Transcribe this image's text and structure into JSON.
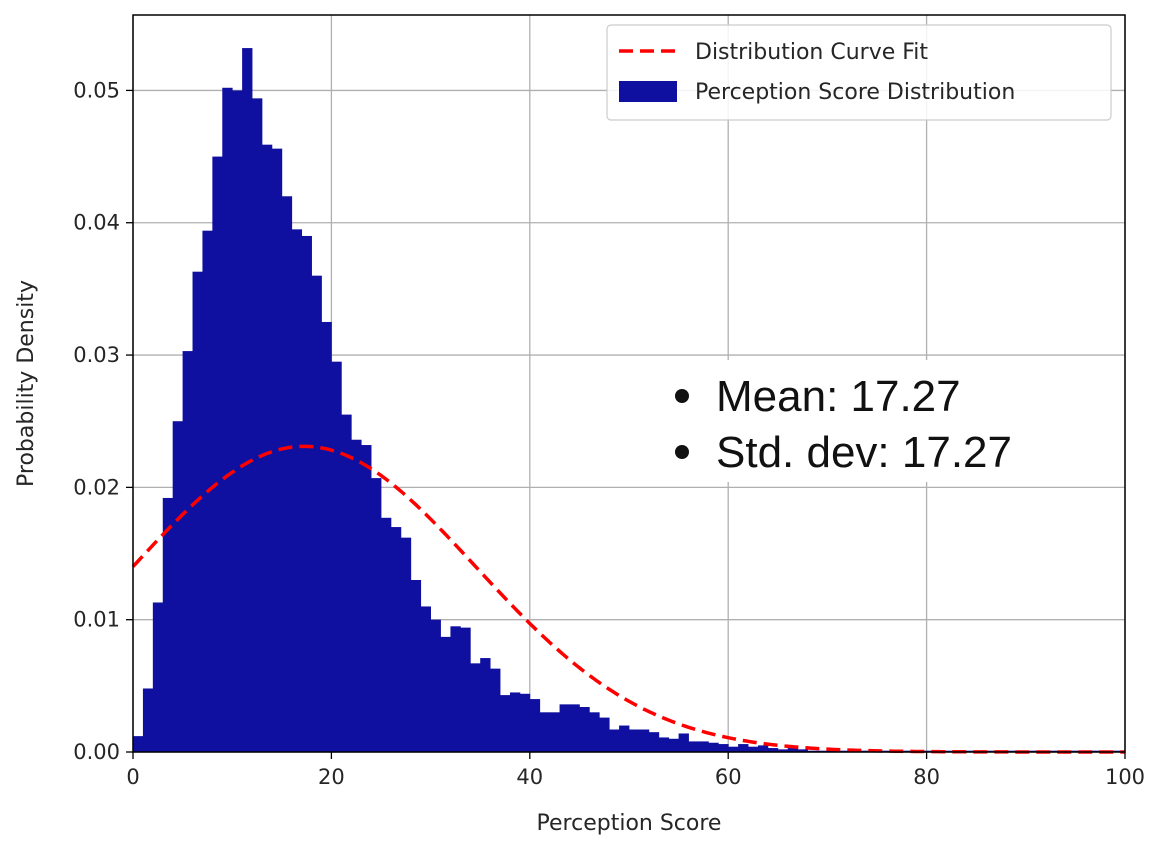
{
  "chart_data": {
    "type": "bar",
    "title": "",
    "xlabel": "Perception Score",
    "ylabel": "Probability Density",
    "xlim": [
      0,
      100
    ],
    "ylim": [
      0,
      0.0557
    ],
    "xticks": [
      0,
      20,
      40,
      60,
      80,
      100
    ],
    "xtick_labels": [
      "0",
      "20",
      "40",
      "60",
      "80",
      "100"
    ],
    "yticks": [
      0.0,
      0.01,
      0.02,
      0.03,
      0.04,
      0.05
    ],
    "ytick_labels": [
      "0.00",
      "0.01",
      "0.02",
      "0.03",
      "0.04",
      "0.05"
    ],
    "grid": true,
    "legend_position": "top-right",
    "colors": {
      "bars": "#1010a0",
      "curve": "#ff0000"
    },
    "series": [
      {
        "name": "Perception Score Distribution",
        "kind": "histogram",
        "bin_start": 0,
        "bin_width": 1,
        "values": [
          0.0012,
          0.0048,
          0.0113,
          0.0192,
          0.025,
          0.0303,
          0.0363,
          0.0394,
          0.045,
          0.0502,
          0.05,
          0.0532,
          0.0494,
          0.0459,
          0.0456,
          0.042,
          0.0395,
          0.039,
          0.036,
          0.0325,
          0.0295,
          0.0255,
          0.0236,
          0.0232,
          0.0207,
          0.0177,
          0.017,
          0.0162,
          0.013,
          0.011,
          0.01,
          0.0087,
          0.0095,
          0.0094,
          0.0067,
          0.0071,
          0.0063,
          0.0043,
          0.0045,
          0.0044,
          0.004,
          0.003,
          0.003,
          0.0036,
          0.0036,
          0.0034,
          0.003,
          0.0026,
          0.0017,
          0.002,
          0.0017,
          0.0017,
          0.0015,
          0.0011,
          0.001,
          0.0014,
          0.0008,
          0.0008,
          0.0007,
          0.0006,
          0.0004,
          0.0006,
          0.0004,
          0.0005,
          0.0003,
          0.0002,
          0.0003,
          0.0002,
          0.0001,
          0.0001,
          0.0001,
          0.0001,
          0.0001,
          0.0001,
          0.0001,
          0.0001,
          0.0001,
          0.0001,
          0.0001,
          0.0001,
          0.0001,
          0.0001,
          0.0001,
          0.0001,
          0.0001,
          0.0001,
          0.0001,
          0.0001,
          0.0001,
          0.0001,
          0.0001,
          0.0001,
          0.0001,
          0.0001,
          0.0001,
          0.0001,
          0.0001,
          0.0001,
          0.0001,
          0.0001
        ]
      },
      {
        "name": "Distribution Curve Fit",
        "kind": "normal-fit-line",
        "mean": 17.27,
        "std": 17.27,
        "line_style": "dashed"
      }
    ],
    "legend": [
      "Distribution Curve Fit",
      "Perception Score Distribution"
    ],
    "annotations": [
      "Mean: 17.27",
      "Std. dev: 17.27"
    ]
  }
}
